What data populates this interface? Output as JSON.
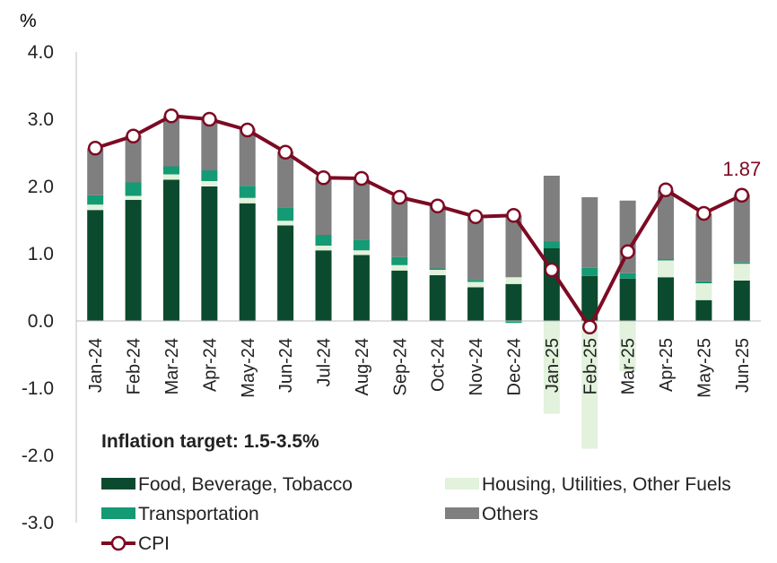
{
  "chart_data": {
    "type": "bar",
    "stacked": true,
    "overlay_line": "CPI",
    "unit_label": "%",
    "ylim": [
      -3.0,
      4.0
    ],
    "yticks": [
      "4.0",
      "3.0",
      "2.0",
      "1.0",
      "0.0",
      "-1.0",
      "-2.0",
      "-3.0"
    ],
    "ytick_values": [
      4,
      3,
      2,
      1,
      0,
      -1,
      -2,
      -3
    ],
    "grid": false,
    "categories": [
      "Jan-24",
      "Feb-24",
      "Mar-24",
      "Apr-24",
      "May-24",
      "Jun-24",
      "Jul-24",
      "Aug-24",
      "Sep-24",
      "Oct-24",
      "Nov-24",
      "Dec-24",
      "Jan-25",
      "Feb-25",
      "Mar-25",
      "Apr-25",
      "May-25",
      "Jun-25"
    ],
    "series": [
      {
        "name": "Food, Beverage, Tobacco",
        "color": "#0b4a2e",
        "values": [
          1.65,
          1.8,
          2.1,
          2.0,
          1.75,
          1.42,
          1.05,
          0.98,
          0.75,
          0.68,
          0.5,
          0.55,
          1.08,
          0.67,
          0.63,
          0.65,
          0.31,
          0.6
        ]
      },
      {
        "name": "Housing, Utilities,  Other Fuels",
        "color": "#e2f2dc",
        "values": [
          0.08,
          0.06,
          0.08,
          0.08,
          0.08,
          0.07,
          0.07,
          0.07,
          0.08,
          0.08,
          0.08,
          0.1,
          -1.38,
          -1.9,
          -0.75,
          0.25,
          0.25,
          0.25
        ]
      },
      {
        "name": "Transportation",
        "color": "#149a74",
        "values": [
          0.14,
          0.2,
          0.12,
          0.16,
          0.18,
          0.2,
          0.16,
          0.16,
          0.12,
          0.02,
          0.03,
          -0.03,
          0.1,
          0.12,
          0.08,
          0.02,
          0.03,
          0.02
        ]
      },
      {
        "name": "Others",
        "color": "#7f7f7f",
        "values": [
          0.7,
          0.7,
          0.75,
          0.77,
          0.85,
          0.83,
          0.85,
          0.9,
          0.9,
          0.94,
          0.95,
          0.92,
          0.98,
          1.05,
          1.08,
          1.02,
          1.0,
          1.01
        ]
      }
    ],
    "line": {
      "name": "CPI",
      "color": "#7d0a23",
      "values": [
        2.57,
        2.75,
        3.05,
        3.0,
        2.84,
        2.51,
        2.13,
        2.12,
        1.84,
        1.71,
        1.55,
        1.57,
        0.76,
        -0.09,
        1.03,
        1.95,
        1.6,
        1.87
      ]
    },
    "annotations": [
      {
        "text": "1.87",
        "category": "Jun-25",
        "series": "CPI",
        "color": "#7d0a23"
      }
    ],
    "legend_title": "Inflation target: 1.5-3.5%",
    "legend_placement": "bottom-left, inside plot"
  }
}
